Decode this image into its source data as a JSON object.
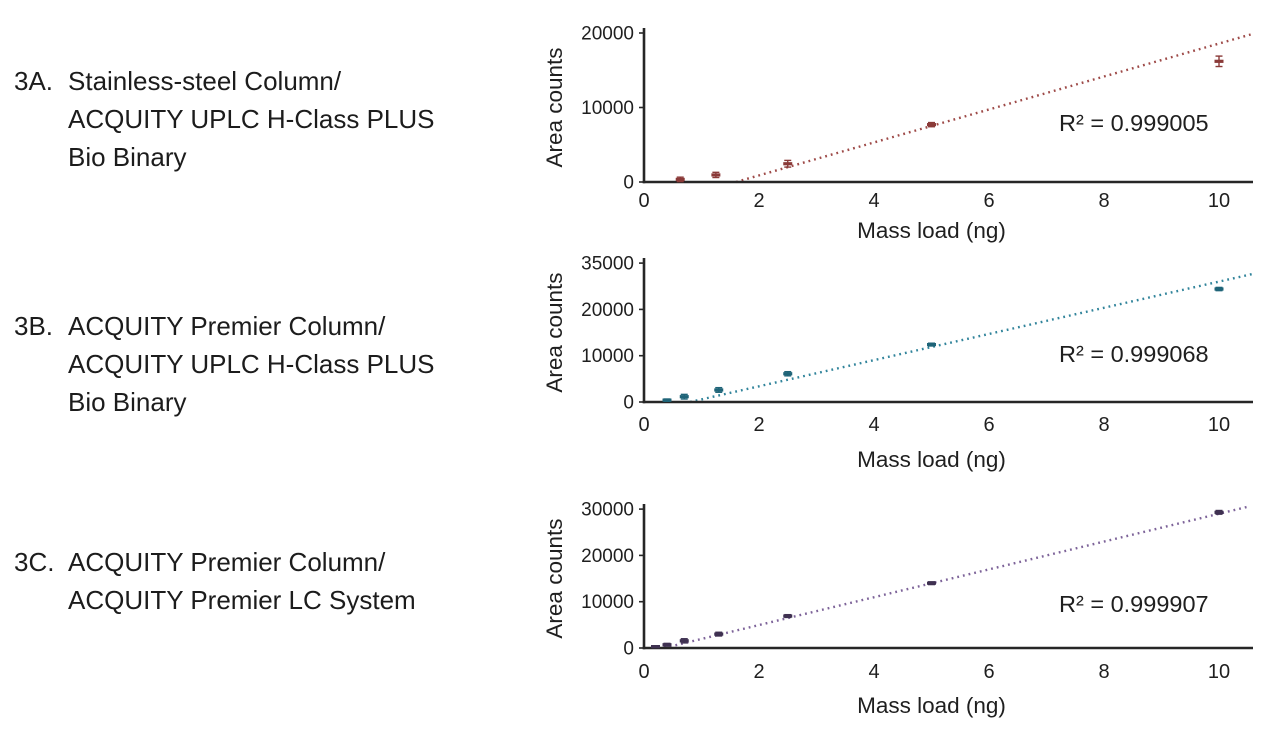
{
  "background": "#ffffff",
  "text_color": "#1f1f1f",
  "axis_color": "#262626",
  "panels": [
    {
      "id": "3A",
      "prefix": "3A.",
      "lines": [
        "Stainless-steel Column/",
        "ACQUITY UPLC H-Class PLUS",
        "Bio Binary"
      ]
    },
    {
      "id": "3B",
      "prefix": "3B.",
      "lines": [
        "ACQUITY Premier Column/",
        "ACQUITY UPLC H-Class PLUS",
        "Bio Binary"
      ]
    },
    {
      "id": "3C",
      "prefix": "3C.",
      "lines": [
        "ACQUITY Premier Column/",
        "ACQUITY Premier LC System"
      ]
    }
  ],
  "chart_data": [
    {
      "type": "scatter",
      "title": "3A. Stainless-steel Column / ACQUITY UPLC H-Class PLUS Bio Binary",
      "xlabel": "Mass load (ng)",
      "ylabel": "Area counts",
      "annotation": "R² = 0.999005",
      "x_ticks": [
        0,
        2,
        4,
        6,
        8,
        10
      ],
      "xlim": [
        0,
        10.6
      ],
      "y_tick_labels": [
        "0",
        "10000",
        "20000"
      ],
      "ylim": [
        0,
        20000
      ],
      "y_unit_value": 10000,
      "grid": false,
      "line_style": "dotted",
      "line_color": "#9e4a48",
      "point_color": "#8a3a38",
      "points": [
        {
          "x": 0.63,
          "y": 350,
          "err": 300
        },
        {
          "x": 1.25,
          "y": 950,
          "err": 350
        },
        {
          "x": 2.5,
          "y": 2450,
          "err": 450
        },
        {
          "x": 5,
          "y": 7700,
          "err": 280
        },
        {
          "x": 10,
          "y": 16200,
          "err": 700
        }
      ],
      "trend": {
        "x1": 1.6,
        "y1": 0,
        "x2": 10.55,
        "y2": 19800
      }
    },
    {
      "type": "scatter",
      "title": "3B. ACQUITY Premier Column / ACQUITY UPLC H-Class PLUS Bio Binary",
      "xlabel": "Mass load (ng)",
      "ylabel": "Area counts",
      "annotation": "R² = 0.999068",
      "x_ticks": [
        0,
        2,
        4,
        6,
        8,
        10
      ],
      "xlim": [
        0,
        10.6
      ],
      "y_tick_labels": [
        "0",
        "10000",
        "20000",
        "35000"
      ],
      "ylim": [
        0,
        35000
      ],
      "y_unit_value": 10000,
      "grid": false,
      "line_style": "dotted",
      "line_color": "#31849b",
      "point_color": "#1f6478",
      "points": [
        {
          "x": 0.4,
          "y": 400,
          "err": 250
        },
        {
          "x": 0.7,
          "y": 1150,
          "err": 500
        },
        {
          "x": 1.3,
          "y": 2600,
          "err": 500
        },
        {
          "x": 2.5,
          "y": 6100,
          "err": 450
        },
        {
          "x": 5,
          "y": 12400,
          "err": 300
        },
        {
          "x": 10,
          "y": 24400,
          "err": 350
        }
      ],
      "trend": {
        "x1": 0.8,
        "y1": 0,
        "x2": 10.6,
        "y2": 27700
      }
    },
    {
      "type": "scatter",
      "title": "3C. ACQUITY Premier Column / ACQUITY Premier LC System",
      "xlabel": "Mass load (ng)",
      "ylabel": "Area counts",
      "annotation": "R² = 0.999907",
      "x_ticks": [
        0,
        2,
        4,
        6,
        8,
        10
      ],
      "xlim": [
        0,
        10.6
      ],
      "y_tick_labels": [
        "0",
        "10000",
        "20000",
        "30000"
      ],
      "ylim": [
        0,
        30000
      ],
      "y_unit_value": 10000,
      "grid": false,
      "line_style": "dotted",
      "line_color": "#7d6399",
      "point_color": "#3f3151",
      "points": [
        {
          "x": 0.2,
          "y": 300,
          "err": 200
        },
        {
          "x": 0.4,
          "y": 700,
          "err": 300
        },
        {
          "x": 0.7,
          "y": 1550,
          "err": 450
        },
        {
          "x": 1.3,
          "y": 3000,
          "err": 400
        },
        {
          "x": 2.5,
          "y": 6900,
          "err": 300
        },
        {
          "x": 5,
          "y": 14000,
          "err": 300
        },
        {
          "x": 10,
          "y": 29300,
          "err": 400
        }
      ],
      "trend": {
        "x1": 0.35,
        "y1": 0,
        "x2": 10.5,
        "y2": 30500
      }
    }
  ]
}
